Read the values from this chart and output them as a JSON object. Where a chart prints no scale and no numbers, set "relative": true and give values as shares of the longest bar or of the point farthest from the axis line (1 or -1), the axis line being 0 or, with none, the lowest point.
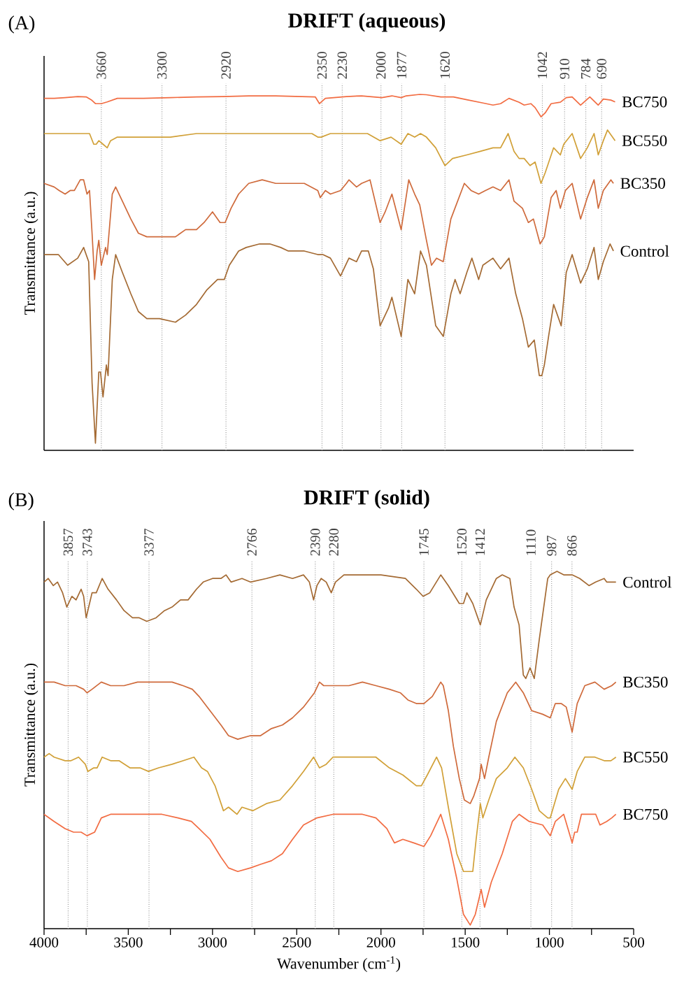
{
  "chart_data": [
    {
      "type": "line",
      "title": "DRIFT (aqueous)",
      "ylabel": "Transmittance (a.u.)",
      "annotations": [
        "(A)"
      ],
      "xlim": [
        4000,
        500
      ],
      "relative": true,
      "legend": false,
      "tick_labels": false,
      "marker": "none",
      "line_style": "solid",
      "ref_lines": [
        {
          "axis": "x",
          "value": 3660,
          "label": "3660",
          "color": "#9a9a9a",
          "line_style": "dotted"
        },
        {
          "axis": "x",
          "value": 3300,
          "label": "3300",
          "color": "#9a9a9a",
          "line_style": "dotted"
        },
        {
          "axis": "x",
          "value": 2920,
          "label": "2920",
          "color": "#9a9a9a",
          "line_style": "dotted"
        },
        {
          "axis": "x",
          "value": 2350,
          "label": "2350",
          "color": "#9a9a9a",
          "line_style": "dotted"
        },
        {
          "axis": "x",
          "value": 2230,
          "label": "2230",
          "color": "#9a9a9a",
          "line_style": "dotted"
        },
        {
          "axis": "x",
          "value": 2000,
          "label": "2000",
          "color": "#9a9a9a",
          "line_style": "dotted"
        },
        {
          "axis": "x",
          "value": 1877,
          "label": "1877",
          "color": "#9a9a9a",
          "line_style": "dotted"
        },
        {
          "axis": "x",
          "value": 1620,
          "label": "1620",
          "color": "#9a9a9a",
          "line_style": "dotted"
        },
        {
          "axis": "x",
          "value": 1042,
          "label": "1042",
          "color": "#9a9a9a",
          "line_style": "dotted"
        },
        {
          "axis": "x",
          "value": 910,
          "label": "910",
          "color": "#9a9a9a",
          "line_style": "dotted"
        },
        {
          "axis": "x",
          "value": 784,
          "label": "784",
          "color": "#9a9a9a",
          "line_style": "dotted"
        },
        {
          "axis": "x",
          "value": 690,
          "label": "690",
          "color": "#9a9a9a",
          "line_style": "dotted"
        }
      ],
      "series": [
        {
          "name": "BC750",
          "color": "#f26c42",
          "x": [
            4000,
            3940,
            3875,
            3800,
            3750,
            3720,
            3695,
            3660,
            3625,
            3565,
            3410,
            3250,
            3095,
            2940,
            2785,
            2625,
            2470,
            2390,
            2365,
            2330,
            2205,
            2115,
            1995,
            1935,
            1880,
            1850,
            1770,
            1730,
            1645,
            1570,
            1490,
            1395,
            1335,
            1290,
            1240,
            1180,
            1150,
            1110,
            1085,
            1050,
            1025,
            990,
            935,
            900,
            865,
            815,
            760,
            710,
            680,
            635,
            610
          ],
          "values": [
            0.989,
            0.989,
            0.991,
            0.994,
            0.993,
            0.985,
            0.974,
            0.974,
            0.979,
            0.989,
            0.989,
            0.991,
            0.993,
            0.994,
            0.996,
            0.996,
            0.994,
            0.993,
            0.974,
            0.989,
            0.994,
            0.996,
            0.991,
            0.996,
            0.991,
            0.996,
            1.0,
            0.999,
            0.993,
            0.993,
            0.985,
            0.976,
            0.97,
            0.974,
            0.989,
            0.978,
            0.97,
            0.974,
            0.963,
            0.937,
            0.948,
            0.974,
            0.978,
            0.991,
            0.993,
            0.97,
            0.993,
            0.97,
            0.987,
            0.984,
            0.979
          ]
        },
        {
          "name": "BC550",
          "color": "#d1a037",
          "x": [
            4000,
            3940,
            3875,
            3830,
            3765,
            3730,
            3705,
            3690,
            3675,
            3650,
            3625,
            3605,
            3565,
            3485,
            3410,
            3250,
            3095,
            2940,
            2815,
            2705,
            2550,
            2410,
            2375,
            2355,
            2300,
            2205,
            2190,
            2080,
            2005,
            1940,
            1880,
            1840,
            1800,
            1765,
            1730,
            1675,
            1620,
            1575,
            1490,
            1410,
            1335,
            1290,
            1245,
            1210,
            1180,
            1150,
            1115,
            1085,
            1050,
            1025,
            975,
            935,
            915,
            865,
            815,
            775,
            735,
            710,
            680,
            655,
            610
          ],
          "values": [
            0.89,
            0.89,
            0.89,
            0.89,
            0.89,
            0.89,
            0.86,
            0.86,
            0.87,
            0.86,
            0.85,
            0.87,
            0.88,
            0.88,
            0.88,
            0.88,
            0.89,
            0.89,
            0.89,
            0.89,
            0.89,
            0.89,
            0.88,
            0.88,
            0.89,
            0.89,
            0.89,
            0.89,
            0.87,
            0.88,
            0.86,
            0.89,
            0.88,
            0.89,
            0.88,
            0.85,
            0.8,
            0.82,
            0.83,
            0.84,
            0.85,
            0.85,
            0.89,
            0.84,
            0.82,
            0.82,
            0.8,
            0.81,
            0.75,
            0.78,
            0.85,
            0.83,
            0.86,
            0.89,
            0.82,
            0.85,
            0.89,
            0.83,
            0.87,
            0.9,
            0.87
          ]
        },
        {
          "name": "BC350",
          "color": "#cf6a3b",
          "x": [
            4000,
            3940,
            3910,
            3875,
            3845,
            3820,
            3785,
            3765,
            3745,
            3730,
            3715,
            3700,
            3685,
            3675,
            3660,
            3635,
            3625,
            3595,
            3575,
            3535,
            3485,
            3440,
            3390,
            3330,
            3265,
            3220,
            3160,
            3095,
            3050,
            3000,
            2955,
            2925,
            2890,
            2845,
            2785,
            2705,
            2625,
            2550,
            2455,
            2375,
            2360,
            2330,
            2300,
            2240,
            2205,
            2190,
            2145,
            2115,
            2065,
            2035,
            2005,
            1975,
            1935,
            1880,
            1835,
            1800,
            1770,
            1730,
            1700,
            1670,
            1630,
            1585,
            1505,
            1465,
            1420,
            1380,
            1335,
            1290,
            1240,
            1210,
            1160,
            1125,
            1095,
            1055,
            1030,
            990,
            960,
            935,
            905,
            865,
            815,
            775,
            735,
            710,
            680,
            635,
            620
          ],
          "values": [
            0.75,
            0.74,
            0.73,
            0.72,
            0.73,
            0.73,
            0.76,
            0.76,
            0.72,
            0.73,
            0.61,
            0.48,
            0.56,
            0.59,
            0.52,
            0.57,
            0.55,
            0.72,
            0.74,
            0.7,
            0.65,
            0.61,
            0.6,
            0.6,
            0.6,
            0.6,
            0.62,
            0.62,
            0.64,
            0.67,
            0.64,
            0.64,
            0.68,
            0.72,
            0.75,
            0.76,
            0.75,
            0.75,
            0.75,
            0.73,
            0.71,
            0.73,
            0.72,
            0.73,
            0.75,
            0.76,
            0.74,
            0.75,
            0.76,
            0.7,
            0.64,
            0.67,
            0.72,
            0.62,
            0.76,
            0.72,
            0.69,
            0.59,
            0.52,
            0.54,
            0.53,
            0.65,
            0.75,
            0.73,
            0.72,
            0.73,
            0.74,
            0.73,
            0.76,
            0.7,
            0.68,
            0.64,
            0.65,
            0.58,
            0.6,
            0.71,
            0.73,
            0.68,
            0.73,
            0.75,
            0.65,
            0.71,
            0.76,
            0.68,
            0.73,
            0.76,
            0.75
          ]
        },
        {
          "name": "Control",
          "color": "#a46a33",
          "x": [
            4000,
            3915,
            3860,
            3800,
            3765,
            3735,
            3715,
            3695,
            3675,
            3665,
            3650,
            3630,
            3620,
            3595,
            3575,
            3535,
            3485,
            3440,
            3390,
            3315,
            3220,
            3160,
            3095,
            3035,
            2970,
            2930,
            2900,
            2845,
            2800,
            2720,
            2660,
            2595,
            2550,
            2455,
            2375,
            2345,
            2300,
            2240,
            2190,
            2145,
            2115,
            2075,
            2045,
            2005,
            1955,
            1935,
            1880,
            1840,
            1800,
            1765,
            1730,
            1675,
            1630,
            1585,
            1560,
            1530,
            1490,
            1460,
            1420,
            1395,
            1335,
            1290,
            1240,
            1200,
            1160,
            1125,
            1090,
            1060,
            1045,
            1030,
            1005,
            975,
            930,
            900,
            865,
            815,
            775,
            735,
            710,
            680,
            640,
            620
          ],
          "values": [
            0.55,
            0.55,
            0.52,
            0.54,
            0.57,
            0.53,
            0.19,
            0.02,
            0.22,
            0.22,
            0.15,
            0.24,
            0.21,
            0.48,
            0.55,
            0.5,
            0.44,
            0.39,
            0.37,
            0.37,
            0.36,
            0.38,
            0.41,
            0.45,
            0.48,
            0.48,
            0.52,
            0.56,
            0.57,
            0.58,
            0.58,
            0.57,
            0.56,
            0.56,
            0.55,
            0.55,
            0.54,
            0.49,
            0.54,
            0.53,
            0.56,
            0.56,
            0.51,
            0.35,
            0.4,
            0.43,
            0.32,
            0.48,
            0.44,
            0.56,
            0.52,
            0.35,
            0.32,
            0.44,
            0.48,
            0.44,
            0.5,
            0.54,
            0.48,
            0.52,
            0.54,
            0.51,
            0.54,
            0.44,
            0.37,
            0.29,
            0.31,
            0.21,
            0.21,
            0.24,
            0.32,
            0.41,
            0.35,
            0.5,
            0.55,
            0.47,
            0.51,
            0.57,
            0.48,
            0.53,
            0.58,
            0.56
          ]
        }
      ]
    },
    {
      "type": "line",
      "title": "DRIFT (solid)",
      "ylabel": "Transmittance (a.u.)",
      "xlabel": "Wavenumber (cm$^{-1}$)",
      "annotations": [
        "(B)"
      ],
      "xlim": [
        4000,
        500
      ],
      "relative": true,
      "legend": false,
      "tick_labels": "x",
      "marker": "none",
      "line_style": "solid",
      "xticks": [
        4000,
        {
          "value": 3750,
          "label": null
        },
        3500,
        {
          "value": 3250,
          "label": null
        },
        3000,
        {
          "value": 2750,
          "label": null
        },
        2500,
        {
          "value": 2250,
          "label": null
        },
        2000,
        {
          "value": 1750,
          "label": null
        },
        1500,
        {
          "value": 1250,
          "label": null
        },
        1000,
        {
          "value": 750,
          "label": null
        },
        500
      ],
      "ref_lines": [
        {
          "axis": "x",
          "value": 3857,
          "label": "3857",
          "color": "#9a9a9a",
          "line_style": "dotted"
        },
        {
          "axis": "x",
          "value": 3743,
          "label": "3743",
          "color": "#9a9a9a",
          "line_style": "dotted"
        },
        {
          "axis": "x",
          "value": 3377,
          "label": "3377",
          "color": "#9a9a9a",
          "line_style": "dotted"
        },
        {
          "axis": "x",
          "value": 2766,
          "label": "2766",
          "color": "#9a9a9a",
          "line_style": "dotted"
        },
        {
          "axis": "x",
          "value": 2390,
          "label": "2390",
          "color": "#9a9a9a",
          "line_style": "dotted"
        },
        {
          "axis": "x",
          "value": 2280,
          "label": "2280",
          "color": "#9a9a9a",
          "line_style": "dotted"
        },
        {
          "axis": "x",
          "value": 1745,
          "label": "1745",
          "color": "#9a9a9a",
          "line_style": "dotted"
        },
        {
          "axis": "x",
          "value": 1520,
          "label": "1520",
          "color": "#9a9a9a",
          "line_style": "dotted"
        },
        {
          "axis": "x",
          "value": 1412,
          "label": "1412",
          "color": "#9a9a9a",
          "line_style": "dotted"
        },
        {
          "axis": "x",
          "value": 1110,
          "label": "1110",
          "color": "#9a9a9a",
          "line_style": "dotted"
        },
        {
          "axis": "x",
          "value": 987,
          "label": "987",
          "color": "#9a9a9a",
          "line_style": "dotted"
        },
        {
          "axis": "x",
          "value": 866,
          "label": "866",
          "color": "#9a9a9a",
          "line_style": "dotted"
        }
      ],
      "series": [
        {
          "name": "Control",
          "color": "#a46a33",
          "x": [
            4000,
            3975,
            3945,
            3920,
            3890,
            3865,
            3835,
            3810,
            3780,
            3765,
            3750,
            3730,
            3715,
            3690,
            3655,
            3620,
            3570,
            3525,
            3475,
            3435,
            3390,
            3335,
            3285,
            3240,
            3190,
            3145,
            3095,
            3055,
            3000,
            2950,
            2920,
            2890,
            2825,
            2775,
            2680,
            2600,
            2525,
            2460,
            2425,
            2400,
            2380,
            2355,
            2325,
            2295,
            2270,
            2220,
            2175,
            2060,
            2000,
            1855,
            1790,
            1750,
            1710,
            1645,
            1600,
            1535,
            1510,
            1490,
            1455,
            1410,
            1375,
            1315,
            1280,
            1235,
            1210,
            1180,
            1155,
            1140,
            1115,
            1090,
            1060,
            1010,
            995,
            955,
            915,
            865,
            820,
            765,
            725,
            675,
            660,
            635,
            605
          ],
          "values": [
            0.97,
            0.98,
            0.96,
            0.97,
            0.94,
            0.9,
            0.93,
            0.92,
            0.95,
            0.93,
            0.87,
            0.91,
            0.94,
            0.94,
            0.98,
            0.95,
            0.92,
            0.89,
            0.87,
            0.87,
            0.86,
            0.87,
            0.89,
            0.9,
            0.92,
            0.92,
            0.95,
            0.97,
            0.98,
            0.98,
            0.99,
            0.97,
            0.98,
            0.97,
            0.98,
            0.99,
            0.98,
            0.99,
            0.97,
            0.92,
            0.96,
            0.98,
            0.97,
            0.94,
            0.97,
            0.99,
            0.99,
            0.99,
            0.99,
            0.98,
            0.95,
            0.93,
            0.94,
            0.99,
            0.96,
            0.91,
            0.91,
            0.94,
            0.91,
            0.85,
            0.92,
            0.98,
            0.99,
            0.98,
            0.9,
            0.85,
            0.71,
            0.7,
            0.73,
            0.7,
            0.81,
            0.98,
            0.99,
            1.0,
            0.99,
            0.99,
            0.98,
            0.96,
            0.97,
            0.98,
            0.97,
            0.97,
            0.97
          ]
        },
        {
          "name": "BC350",
          "color": "#cf6a3b",
          "x": [
            4000,
            3940,
            3875,
            3810,
            3765,
            3745,
            3715,
            3660,
            3605,
            3525,
            3445,
            3380,
            3300,
            3240,
            3175,
            3120,
            3080,
            3015,
            2950,
            2905,
            2850,
            2775,
            2715,
            2650,
            2585,
            2525,
            2460,
            2395,
            2365,
            2340,
            2315,
            2270,
            2220,
            2190,
            2110,
            2030,
            1950,
            1885,
            1840,
            1790,
            1745,
            1695,
            1645,
            1630,
            1600,
            1570,
            1535,
            1505,
            1470,
            1450,
            1415,
            1405,
            1385,
            1360,
            1315,
            1250,
            1200,
            1155,
            1105,
            1040,
            995,
            965,
            930,
            900,
            865,
            835,
            790,
            730,
            675,
            630,
            605
          ],
          "values": [
            0.69,
            0.69,
            0.68,
            0.68,
            0.67,
            0.66,
            0.67,
            0.69,
            0.68,
            0.68,
            0.69,
            0.69,
            0.69,
            0.69,
            0.68,
            0.67,
            0.65,
            0.61,
            0.57,
            0.54,
            0.53,
            0.54,
            0.54,
            0.56,
            0.57,
            0.59,
            0.62,
            0.66,
            0.69,
            0.68,
            0.68,
            0.68,
            0.68,
            0.68,
            0.69,
            0.68,
            0.67,
            0.66,
            0.64,
            0.63,
            0.63,
            0.65,
            0.69,
            0.68,
            0.61,
            0.51,
            0.42,
            0.36,
            0.35,
            0.37,
            0.42,
            0.46,
            0.42,
            0.48,
            0.58,
            0.66,
            0.69,
            0.66,
            0.61,
            0.6,
            0.59,
            0.63,
            0.63,
            0.62,
            0.55,
            0.63,
            0.68,
            0.69,
            0.67,
            0.68,
            0.69
          ]
        },
        {
          "name": "BC550",
          "color": "#d1a037",
          "x": [
            4000,
            3970,
            3940,
            3875,
            3840,
            3795,
            3755,
            3740,
            3705,
            3685,
            3655,
            3605,
            3555,
            3490,
            3430,
            3380,
            3320,
            3240,
            3175,
            3110,
            3065,
            3030,
            2985,
            2935,
            2905,
            2855,
            2825,
            2760,
            2680,
            2600,
            2525,
            2460,
            2400,
            2365,
            2325,
            2285,
            2220,
            2190,
            2110,
            2030,
            1950,
            1870,
            1790,
            1760,
            1725,
            1670,
            1640,
            1600,
            1550,
            1510,
            1455,
            1435,
            1410,
            1395,
            1360,
            1315,
            1250,
            1205,
            1155,
            1105,
            1060,
            1010,
            995,
            945,
            905,
            865,
            835,
            790,
            730,
            675,
            635,
            605
          ],
          "values": [
            0.48,
            0.49,
            0.48,
            0.47,
            0.47,
            0.48,
            0.46,
            0.44,
            0.45,
            0.45,
            0.48,
            0.47,
            0.47,
            0.45,
            0.45,
            0.44,
            0.45,
            0.46,
            0.47,
            0.48,
            0.45,
            0.44,
            0.4,
            0.33,
            0.34,
            0.32,
            0.34,
            0.33,
            0.35,
            0.36,
            0.4,
            0.44,
            0.48,
            0.45,
            0.46,
            0.48,
            0.48,
            0.48,
            0.48,
            0.48,
            0.45,
            0.43,
            0.4,
            0.4,
            0.43,
            0.48,
            0.45,
            0.34,
            0.21,
            0.16,
            0.16,
            0.25,
            0.35,
            0.31,
            0.36,
            0.42,
            0.45,
            0.48,
            0.45,
            0.39,
            0.33,
            0.31,
            0.31,
            0.39,
            0.42,
            0.39,
            0.44,
            0.48,
            0.48,
            0.47,
            0.47,
            0.48
          ]
        },
        {
          "name": "BC750",
          "color": "#f26c42",
          "x": [
            4000,
            3940,
            3875,
            3825,
            3780,
            3745,
            3700,
            3660,
            3605,
            3510,
            3395,
            3300,
            3205,
            3125,
            3080,
            3015,
            2950,
            2905,
            2850,
            2775,
            2715,
            2650,
            2585,
            2525,
            2460,
            2380,
            2285,
            2220,
            2190,
            2110,
            2030,
            1965,
            1920,
            1870,
            1805,
            1745,
            1705,
            1645,
            1600,
            1550,
            1510,
            1470,
            1440,
            1415,
            1405,
            1385,
            1345,
            1280,
            1220,
            1180,
            1120,
            1040,
            995,
            965,
            915,
            865,
            850,
            835,
            810,
            725,
            700,
            660,
            630,
            605
          ],
          "values": [
            0.32,
            0.3,
            0.28,
            0.27,
            0.27,
            0.26,
            0.27,
            0.31,
            0.32,
            0.32,
            0.32,
            0.32,
            0.31,
            0.3,
            0.28,
            0.25,
            0.2,
            0.17,
            0.16,
            0.17,
            0.18,
            0.19,
            0.21,
            0.25,
            0.29,
            0.31,
            0.32,
            0.32,
            0.32,
            0.32,
            0.31,
            0.28,
            0.24,
            0.25,
            0.24,
            0.23,
            0.26,
            0.32,
            0.25,
            0.14,
            0.04,
            0.01,
            0.04,
            0.09,
            0.11,
            0.06,
            0.13,
            0.21,
            0.3,
            0.32,
            0.3,
            0.29,
            0.26,
            0.3,
            0.32,
            0.24,
            0.27,
            0.27,
            0.32,
            0.32,
            0.29,
            0.3,
            0.31,
            0.32
          ]
        }
      ]
    }
  ]
}
